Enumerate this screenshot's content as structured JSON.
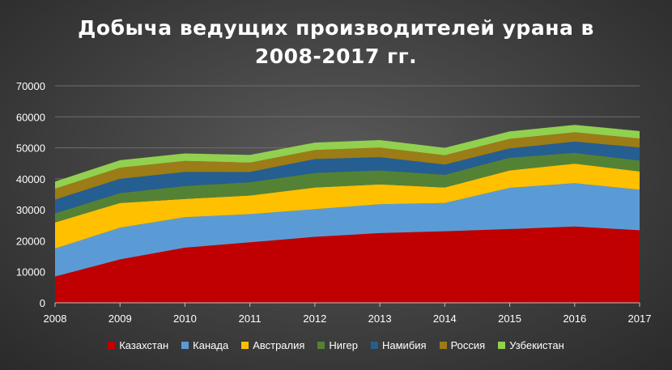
{
  "chart_data": {
    "type": "area",
    "stacked": true,
    "title_line1": "Добыча ведущих производителей урана в",
    "title_line2": "2008-2017 гг.",
    "xlabel": "",
    "ylabel": "",
    "ylim": [
      0,
      70000
    ],
    "yticks": [
      "0",
      "10000",
      "20000",
      "30000",
      "40000",
      "50000",
      "60000",
      "70000"
    ],
    "x": [
      "2008",
      "2009",
      "2010",
      "2011",
      "2012",
      "2013",
      "2014",
      "2015",
      "2016",
      "2017"
    ],
    "grid": true,
    "legend_position": "bottom",
    "series": [
      {
        "name": "Казахстан",
        "color": "#c00000",
        "values": [
          8500,
          14000,
          17800,
          19500,
          21300,
          22500,
          23100,
          23800,
          24600,
          23400
        ]
      },
      {
        "name": "Канада",
        "color": "#5b9bd5",
        "values": [
          9000,
          10200,
          9800,
          9100,
          8900,
          9300,
          9100,
          13300,
          14000,
          13100
        ]
      },
      {
        "name": "Австралия",
        "color": "#ffc000",
        "values": [
          8400,
          8000,
          5900,
          6000,
          7000,
          6400,
          5000,
          5600,
          6300,
          5900
        ]
      },
      {
        "name": "Нигер",
        "color": "#548235",
        "values": [
          3000,
          3200,
          4200,
          4300,
          4700,
          4500,
          4100,
          4100,
          3500,
          3500
        ]
      },
      {
        "name": "Намибия",
        "color": "#255e91",
        "values": [
          4400,
          4600,
          4500,
          3300,
          4500,
          4300,
          3300,
          3000,
          3600,
          4200
        ]
      },
      {
        "name": "Россия",
        "color": "#9c7c16",
        "values": [
          3500,
          3600,
          3600,
          3000,
          2900,
          3100,
          3000,
          3100,
          3000,
          2900
        ]
      },
      {
        "name": "Узбекистан",
        "color": "#92d050",
        "values": [
          2300,
          2400,
          2400,
          2500,
          2400,
          2400,
          2400,
          2400,
          2400,
          2400
        ]
      }
    ]
  }
}
